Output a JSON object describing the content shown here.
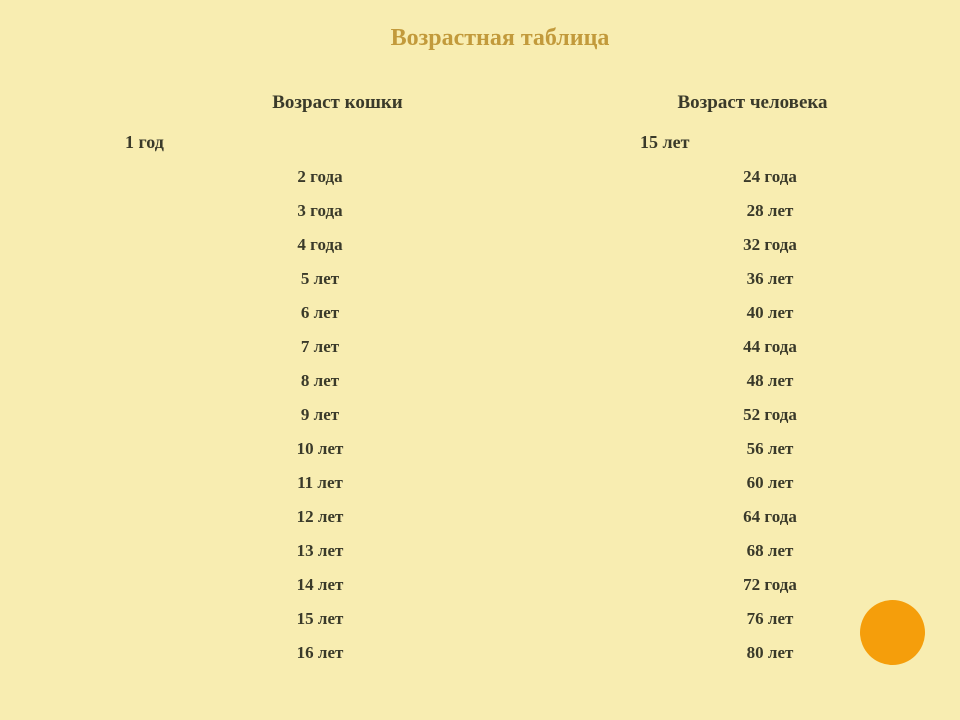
{
  "title": "Возрастная таблица",
  "headers": {
    "cat": "Возраст кошки",
    "human": "Возраст человека"
  },
  "first_row": {
    "cat": "1 год",
    "human": "15 лет"
  },
  "rows": [
    {
      "cat": "2 года",
      "human": "24 года"
    },
    {
      "cat": "3 года",
      "human": "28 лет"
    },
    {
      "cat": "4 года",
      "human": "32 года"
    },
    {
      "cat": "5 лет",
      "human": "36 лет"
    },
    {
      "cat": "6 лет",
      "human": "40 лет"
    },
    {
      "cat": "7 лет",
      "human": "44 года"
    },
    {
      "cat": "8 лет",
      "human": "48 лет"
    },
    {
      "cat": "9 лет",
      "human": "52 года"
    },
    {
      "cat": "10 лет",
      "human": "56 лет"
    },
    {
      "cat": "11 лет",
      "human": "60 лет"
    },
    {
      "cat": "12 лет",
      "human": "64 года"
    },
    {
      "cat": "13 лет",
      "human": "68 лет"
    },
    {
      "cat": "14 лет",
      "human": "72 года"
    },
    {
      "cat": "15 лет",
      "human": "76 лет"
    },
    {
      "cat": "16 лет",
      "human": "80 лет"
    }
  ],
  "styling": {
    "background_color": "#f8edb1",
    "title_color": "#c29a3b",
    "text_color": "#3a3a2a",
    "accent_circle_color": "#f59e0b",
    "title_fontsize": 24,
    "header_fontsize": 19,
    "cell_fontsize": 17,
    "font_family": "Georgia, serif",
    "font_weight": "bold"
  }
}
